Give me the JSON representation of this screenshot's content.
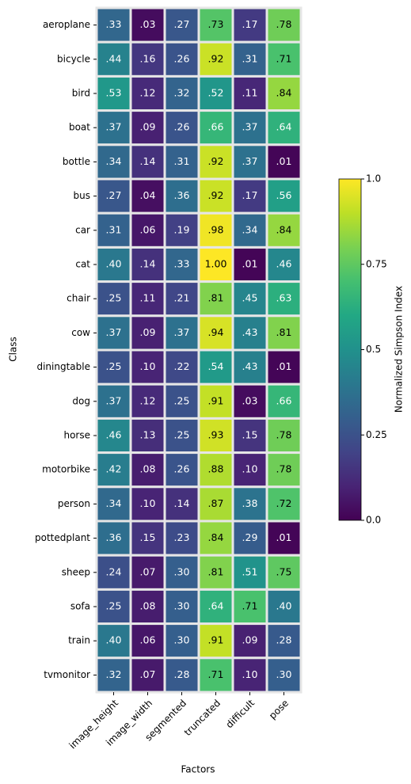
{
  "chart_data": {
    "type": "heatmap",
    "x_label": "Factors",
    "y_label": "Class",
    "colorbar_label": "Normalized Simpson Index",
    "colormap": "viridis",
    "clim": [
      0,
      1
    ],
    "cticks": [
      {
        "value": 0,
        "label": "0.0"
      },
      0.25,
      0.5,
      0.75,
      {
        "value": 1,
        "label": "1.0"
      }
    ],
    "x_categories": [
      "image_height",
      "image_width",
      "segmented",
      "truncated",
      "difficult",
      "pose"
    ],
    "y_categories": [
      "aeroplane",
      "bicycle",
      "bird",
      "boat",
      "bottle",
      "bus",
      "car",
      "cat",
      "chair",
      "cow",
      "diningtable",
      "dog",
      "horse",
      "motorbike",
      "person",
      "pottedplant",
      "sheep",
      "sofa",
      "train",
      "tvmonitor"
    ],
    "values": [
      [
        0.33,
        0.03,
        0.27,
        0.73,
        0.17,
        0.78
      ],
      [
        0.44,
        0.16,
        0.26,
        0.92,
        0.31,
        0.71
      ],
      [
        0.53,
        0.12,
        0.32,
        0.52,
        0.11,
        0.84
      ],
      [
        0.37,
        0.09,
        0.26,
        0.66,
        0.37,
        0.64
      ],
      [
        0.34,
        0.14,
        0.31,
        0.92,
        0.37,
        0.01
      ],
      [
        0.27,
        0.04,
        0.36,
        0.92,
        0.17,
        0.56
      ],
      [
        0.31,
        0.06,
        0.19,
        0.98,
        0.34,
        0.84
      ],
      [
        0.4,
        0.14,
        0.33,
        1.0,
        0.01,
        0.46
      ],
      [
        0.25,
        0.11,
        0.21,
        0.81,
        0.45,
        0.63
      ],
      [
        0.37,
        0.09,
        0.37,
        0.94,
        0.43,
        0.81
      ],
      [
        0.25,
        0.1,
        0.22,
        0.54,
        0.43,
        0.01
      ],
      [
        0.37,
        0.12,
        0.25,
        0.91,
        0.03,
        0.66
      ],
      [
        0.46,
        0.13,
        0.25,
        0.93,
        0.15,
        0.78
      ],
      [
        0.42,
        0.08,
        0.26,
        0.88,
        0.1,
        0.78
      ],
      [
        0.34,
        0.1,
        0.14,
        0.87,
        0.38,
        0.72
      ],
      [
        0.36,
        0.15,
        0.23,
        0.84,
        0.29,
        0.01
      ],
      [
        0.24,
        0.07,
        0.3,
        0.81,
        0.51,
        0.75
      ],
      [
        0.25,
        0.08,
        0.3,
        0.64,
        0.71,
        0.4
      ],
      [
        0.4,
        0.06,
        0.3,
        0.91,
        0.09,
        0.28
      ],
      [
        0.32,
        0.07,
        0.28,
        0.71,
        0.1,
        0.3
      ]
    ],
    "value_labels": [
      [
        ".33",
        ".03",
        ".27",
        ".73",
        ".17",
        ".78"
      ],
      [
        ".44",
        ".16",
        ".26",
        ".92",
        ".31",
        ".71"
      ],
      [
        ".53",
        ".12",
        ".32",
        ".52",
        ".11",
        ".84"
      ],
      [
        ".37",
        ".09",
        ".26",
        ".66",
        ".37",
        ".64"
      ],
      [
        ".34",
        ".14",
        ".31",
        ".92",
        ".37",
        ".01"
      ],
      [
        ".27",
        ".04",
        ".36",
        ".92",
        ".17",
        ".56"
      ],
      [
        ".31",
        ".06",
        ".19",
        ".98",
        ".34",
        ".84"
      ],
      [
        ".40",
        ".14",
        ".33",
        "1.00",
        ".01",
        ".46"
      ],
      [
        ".25",
        ".11",
        ".21",
        ".81",
        ".45",
        ".63"
      ],
      [
        ".37",
        ".09",
        ".37",
        ".94",
        ".43",
        ".81"
      ],
      [
        ".25",
        ".10",
        ".22",
        ".54",
        ".43",
        ".01"
      ],
      [
        ".37",
        ".12",
        ".25",
        ".91",
        ".03",
        ".66"
      ],
      [
        ".46",
        ".13",
        ".25",
        ".93",
        ".15",
        ".78"
      ],
      [
        ".42",
        ".08",
        ".26",
        ".88",
        ".10",
        ".78"
      ],
      [
        ".34",
        ".10",
        ".14",
        ".87",
        ".38",
        ".72"
      ],
      [
        ".36",
        ".15",
        ".23",
        ".84",
        ".29",
        ".01"
      ],
      [
        ".24",
        ".07",
        ".30",
        ".81",
        ".51",
        ".75"
      ],
      [
        ".25",
        ".08",
        ".30",
        ".64",
        ".71",
        ".40"
      ],
      [
        ".40",
        ".06",
        ".30",
        ".91",
        ".09",
        ".28"
      ],
      [
        ".32",
        ".07",
        ".28",
        ".71",
        ".10",
        ".30"
      ]
    ]
  }
}
